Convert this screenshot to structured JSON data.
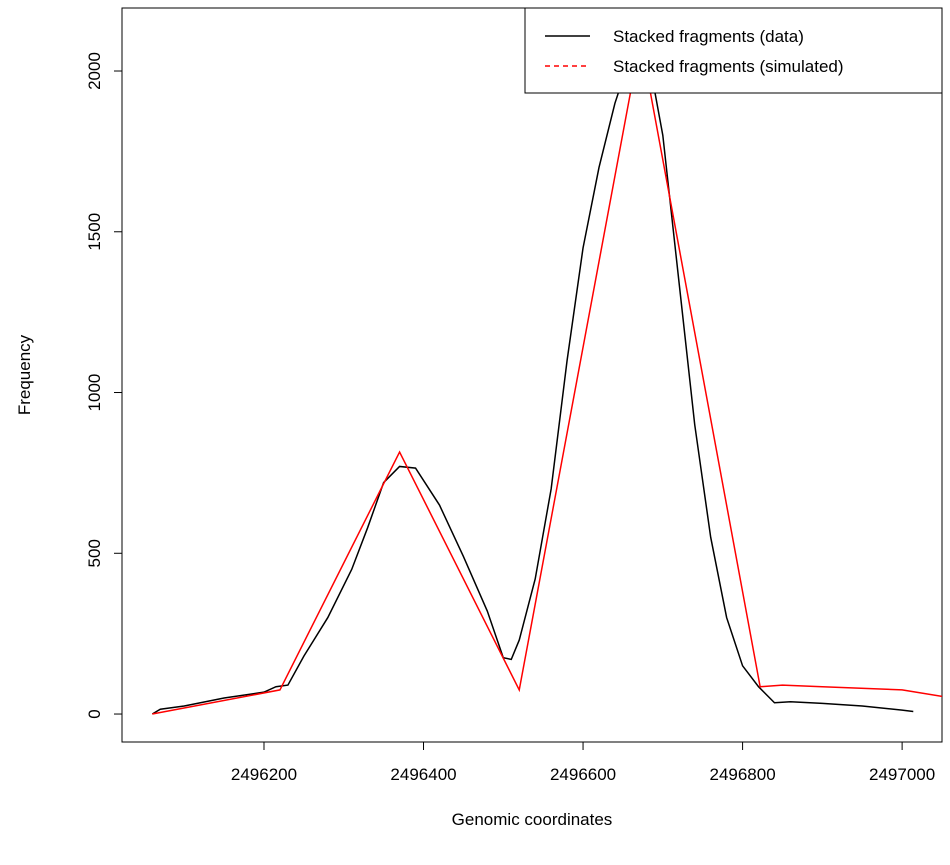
{
  "chart_data": {
    "type": "line",
    "xlabel": "Genomic coordinates",
    "ylabel": "Frequency",
    "xlim": [
      2496022,
      2497050
    ],
    "ylim": [
      -87,
      2196
    ],
    "xticks": [
      2496200,
      2496400,
      2496600,
      2496800,
      2497000
    ],
    "yticks": [
      0,
      500,
      1000,
      1500,
      2000
    ],
    "legend": "top-right",
    "series": [
      {
        "name": "Stacked fragments (data)",
        "color": "#000000",
        "x": [
          2496060,
          2496070,
          2496100,
          2496150,
          2496200,
          2496215,
          2496230,
          2496250,
          2496280,
          2496310,
          2496330,
          2496350,
          2496370,
          2496390,
          2496420,
          2496450,
          2496480,
          2496500,
          2496510,
          2496520,
          2496540,
          2496560,
          2496580,
          2496600,
          2496620,
          2496640,
          2496660,
          2496670,
          2496680,
          2496700,
          2496720,
          2496740,
          2496760,
          2496780,
          2496800,
          2496820,
          2496830,
          2496840,
          2496860,
          2496900,
          2496950,
          2497000,
          2497014
        ],
        "values": [
          0,
          15,
          25,
          50,
          68,
          85,
          90,
          180,
          300,
          450,
          580,
          720,
          770,
          765,
          650,
          490,
          320,
          175,
          170,
          230,
          420,
          700,
          1100,
          1450,
          1700,
          1900,
          2050,
          2100,
          2070,
          1800,
          1350,
          900,
          550,
          300,
          150,
          85,
          60,
          35,
          38,
          33,
          25,
          12,
          8
        ]
      },
      {
        "name": "Stacked fragments (simulated)",
        "color": "#ff0000",
        "x": [
          2496060,
          2496220,
          2496370,
          2496520,
          2496672,
          2496822,
          2496850,
          2496900,
          2497000,
          2497050
        ],
        "values": [
          0,
          75,
          815,
          75,
          2100,
          85,
          90,
          85,
          75,
          55
        ]
      }
    ]
  }
}
